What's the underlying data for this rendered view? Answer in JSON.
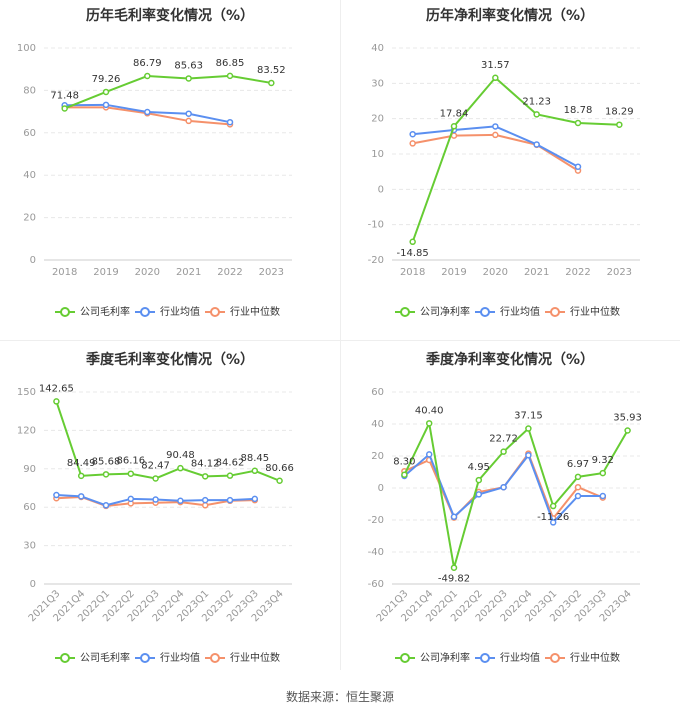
{
  "source": "数据来源：恒生聚源",
  "colors": {
    "company": "#66cc33",
    "industry_avg": "#5b8ff0",
    "industry_median": "#f5916b",
    "axis_text": "#999999",
    "grid": "#e8e8e8"
  },
  "chart_data": [
    {
      "type": "line",
      "title": "历年毛利率变化情况（%）",
      "categories": [
        "2018",
        "2019",
        "2020",
        "2021",
        "2022",
        "2023"
      ],
      "ylim": [
        0,
        100
      ],
      "yticks": [
        0,
        20,
        40,
        60,
        80,
        100
      ],
      "series": [
        {
          "name": "公司毛利率",
          "values": [
            71.48,
            79.26,
            86.79,
            85.63,
            86.85,
            83.52
          ],
          "labels": [
            "71.48",
            "79.26",
            "86.79",
            "85.63",
            "86.85",
            "83.52"
          ]
        },
        {
          "name": "行业均值",
          "values": [
            73.0,
            73.2,
            69.8,
            69.0,
            65.0,
            null
          ]
        },
        {
          "name": "行业中位数",
          "values": [
            72.0,
            72.0,
            69.2,
            65.6,
            64.0,
            null
          ]
        }
      ],
      "grid": true,
      "legend": "bottom"
    },
    {
      "type": "line",
      "title": "历年净利率变化情况（%）",
      "categories": [
        "2018",
        "2019",
        "2020",
        "2021",
        "2022",
        "2023"
      ],
      "ylim": [
        -20,
        40
      ],
      "yticks": [
        -20,
        -10,
        0,
        10,
        20,
        30,
        40
      ],
      "series": [
        {
          "name": "公司净利率",
          "values": [
            -14.85,
            17.84,
            31.57,
            21.23,
            18.78,
            18.29
          ],
          "labels": [
            "-14.85",
            "17.84",
            "31.57",
            "21.23",
            "18.78",
            "18.29"
          ]
        },
        {
          "name": "行业均值",
          "values": [
            15.6,
            16.8,
            17.8,
            12.7,
            6.4,
            null
          ]
        },
        {
          "name": "行业中位数",
          "values": [
            13.0,
            15.2,
            15.4,
            12.6,
            5.3,
            null
          ]
        }
      ],
      "grid": true,
      "legend": "bottom"
    },
    {
      "type": "line",
      "title": "季度毛利率变化情况（%）",
      "categories": [
        "2021Q3",
        "2021Q4",
        "2022Q1",
        "2022Q2",
        "2022Q3",
        "2022Q4",
        "2023Q1",
        "2023Q2",
        "2023Q3",
        "2023Q4"
      ],
      "ylim": [
        0,
        150
      ],
      "yticks": [
        0,
        30,
        60,
        90,
        120,
        150
      ],
      "series": [
        {
          "name": "公司毛利率",
          "values": [
            142.65,
            84.49,
            85.68,
            86.16,
            82.47,
            90.48,
            84.12,
            84.62,
            88.45,
            80.66
          ],
          "labels": [
            "142.65",
            "84.49",
            "85.68",
            "86.16",
            "82.47",
            "90.48",
            "84.12",
            "84.62",
            "88.45",
            "80.66"
          ]
        },
        {
          "name": "行业均值",
          "values": [
            69.5,
            68.5,
            61.5,
            66.5,
            66.0,
            65.0,
            65.5,
            65.5,
            66.5,
            null
          ]
        },
        {
          "name": "行业中位数",
          "values": [
            67.0,
            68.0,
            61.0,
            63.0,
            63.5,
            64.0,
            61.5,
            65.0,
            65.5,
            null
          ]
        }
      ],
      "grid": true,
      "legend": "bottom"
    },
    {
      "type": "line",
      "title": "季度净利率变化情况（%）",
      "categories": [
        "2021Q3",
        "2021Q4",
        "2022Q1",
        "2022Q2",
        "2022Q3",
        "2022Q4",
        "2023Q1",
        "2023Q2",
        "2023Q3",
        "2023Q4"
      ],
      "ylim": [
        -60,
        60
      ],
      "yticks": [
        -60,
        -40,
        -20,
        0,
        20,
        40,
        60
      ],
      "series": [
        {
          "name": "公司净利率",
          "values": [
            8.3,
            40.4,
            -49.82,
            4.95,
            22.72,
            37.15,
            -11.26,
            6.97,
            9.32,
            35.93
          ],
          "labels": [
            "8.30",
            "40.40",
            "-49.82",
            "4.95",
            "22.72",
            "37.15",
            "-11.26",
            "6.97",
            "9.32",
            "35.93"
          ]
        },
        {
          "name": "行业均值",
          "values": [
            7.5,
            21.0,
            -18.0,
            -4.0,
            0.5,
            20.5,
            -21.5,
            -5.0,
            -5.0,
            null
          ]
        },
        {
          "name": "行业中位数",
          "values": [
            10.5,
            17.5,
            -18.5,
            -2.5,
            0.5,
            21.5,
            -19.0,
            0.5,
            -6.0,
            null
          ]
        }
      ],
      "grid": true,
      "legend": "bottom"
    }
  ]
}
